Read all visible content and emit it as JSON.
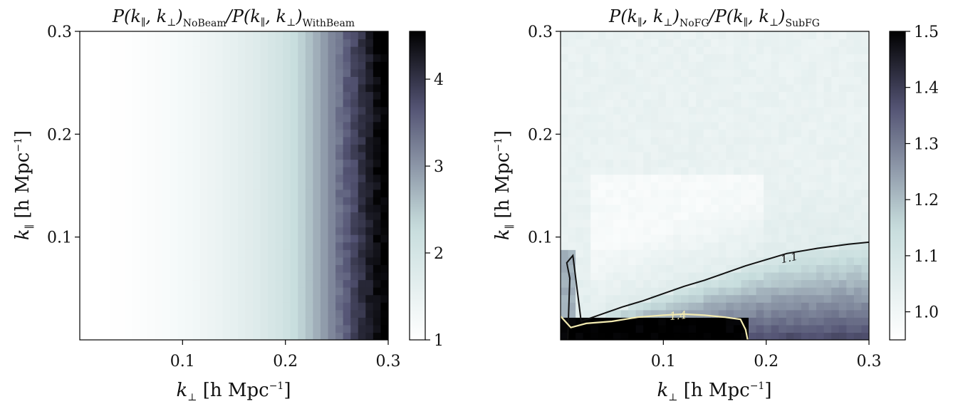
{
  "figure": {
    "panels": [
      {
        "title": {
          "pre": "P(k",
          "par1": "∥",
          "mid1": ", k",
          "perp1": "⊥",
          "mid2": ")",
          "sub1": "NoBeam",
          "mid3": "/P(k",
          "par2": "∥",
          "mid4": ", k",
          "perp2": "⊥",
          "mid5": ")",
          "sub2": "WithBeam"
        },
        "x_tick_labels": [
          "0.1",
          "0.2",
          "0.3"
        ],
        "y_tick_labels": [
          "0.1",
          "0.2",
          "0.3"
        ],
        "colorbar_tick_labels": [
          "1",
          "2",
          "3",
          "4"
        ]
      },
      {
        "title": {
          "pre": "P(k",
          "par1": "∥",
          "mid1": ", k",
          "perp1": "⊥",
          "mid2": ")",
          "sub1": "NoFG",
          "mid3": "/P(k",
          "par2": "∥",
          "mid4": ", k",
          "perp2": "⊥",
          "mid5": ")",
          "sub2": "SubFG"
        },
        "x_tick_labels": [
          "0.1",
          "0.2",
          "0.3"
        ],
        "y_tick_labels": [
          "0.1",
          "0.2",
          "0.3"
        ],
        "colorbar_tick_labels": [
          "1.0",
          "1.1",
          "1.2",
          "1.3",
          "1.4",
          "1.5"
        ],
        "contour_labels": [
          "1.1",
          "1.4"
        ]
      }
    ],
    "xlabel": {
      "k": "k",
      "sub": "⊥",
      "rest": " [h Mpc",
      "sup": "−1",
      "close": "]"
    },
    "ylabel": {
      "k": "k",
      "sub": "∥",
      "rest": " [h Mpc",
      "sup": "−1",
      "close": "]"
    }
  },
  "chart_data": [
    {
      "type": "heatmap",
      "title": "P(k∥, k⊥)NoBeam / P(k∥, k⊥)WithBeam",
      "xlabel": "k⊥ [h Mpc−1]",
      "ylabel": "k∥ [h Mpc−1]",
      "xlim": [
        0.0,
        0.3
      ],
      "ylim": [
        0.0,
        0.3
      ],
      "x_ticks": [
        0.1,
        0.2,
        0.3
      ],
      "y_ticks": [
        0.1,
        0.2,
        0.3
      ],
      "colorbar": {
        "min": 1.0,
        "max": 4.55,
        "ticks": [
          1,
          2,
          3,
          4
        ],
        "colormap": "bone_r"
      },
      "k_perp": [
        0.02,
        0.05,
        0.08,
        0.11,
        0.14,
        0.17,
        0.2,
        0.22,
        0.24,
        0.26,
        0.28,
        0.295
      ],
      "ratio_vs_k_perp": [
        1.0,
        1.05,
        1.15,
        1.3,
        1.5,
        1.75,
        2.1,
        2.5,
        3.0,
        3.6,
        4.2,
        4.55
      ],
      "note_axis": "ratio varies only along k⊥"
    },
    {
      "type": "heatmap",
      "title": "P(k∥, k⊥)NoFG / P(k∥, k⊥)SubFG",
      "xlabel": "k⊥ [h Mpc−1]",
      "ylabel": "k∥ [h Mpc−1]",
      "xlim": [
        0.0,
        0.3
      ],
      "ylim": [
        0.0,
        0.3
      ],
      "x_ticks": [
        0.1,
        0.2,
        0.3
      ],
      "y_ticks": [
        0.1,
        0.2,
        0.3
      ],
      "colorbar": {
        "min": 0.95,
        "max": 1.5,
        "ticks": [
          1.0,
          1.1,
          1.2,
          1.3,
          1.4,
          1.5
        ],
        "colormap": "bone_r"
      },
      "contours": [
        {
          "level": 1.1,
          "color": "#111111",
          "points": [
            [
              0.007,
              0.0
            ],
            [
              0.008,
              0.03
            ],
            [
              0.009,
              0.06
            ],
            [
              0.006,
              0.075
            ],
            [
              0.012,
              0.082
            ],
            [
              0.02,
              0.018
            ],
            [
              0.04,
              0.025
            ],
            [
              0.06,
              0.032
            ],
            [
              0.08,
              0.038
            ],
            [
              0.1,
              0.045
            ],
            [
              0.12,
              0.052
            ],
            [
              0.14,
              0.058
            ],
            [
              0.16,
              0.065
            ],
            [
              0.18,
              0.072
            ],
            [
              0.2,
              0.078
            ],
            [
              0.22,
              0.084
            ],
            [
              0.25,
              0.089
            ],
            [
              0.28,
              0.093
            ],
            [
              0.3,
              0.095
            ]
          ]
        },
        {
          "level": 1.4,
          "color": "#f2eab0",
          "points": [
            [
              0.0,
              0.023
            ],
            [
              0.01,
              0.012
            ],
            [
              0.025,
              0.016
            ],
            [
              0.05,
              0.018
            ],
            [
              0.075,
              0.022
            ],
            [
              0.1,
              0.024
            ],
            [
              0.12,
              0.025
            ],
            [
              0.14,
              0.024
            ],
            [
              0.16,
              0.022
            ],
            [
              0.175,
              0.02
            ],
            [
              0.18,
              0.01
            ],
            [
              0.182,
              0.0
            ]
          ]
        }
      ]
    }
  ]
}
